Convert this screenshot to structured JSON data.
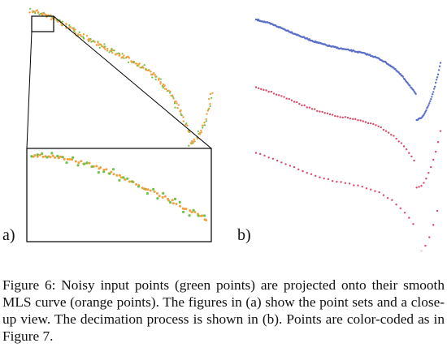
{
  "figure": {
    "panels": [
      {
        "id": "a",
        "label": "a)",
        "description_hidden": true
      },
      {
        "id": "b",
        "label": "b)"
      }
    ],
    "colors": {
      "input_points": "#6cc24a",
      "mls_points": "#f2a03c",
      "top_row_points": "#5b6fc7",
      "lower_rows_points": "#d84a6a"
    }
  },
  "caption": {
    "text": "Figure 6: Noisy input points (green points) are projected onto their smooth MLS curve (orange points).  The figures in (a) show the point sets and a close-up view. The decimation process is shown in (b). Points are color-coded as in Figure 7."
  }
}
